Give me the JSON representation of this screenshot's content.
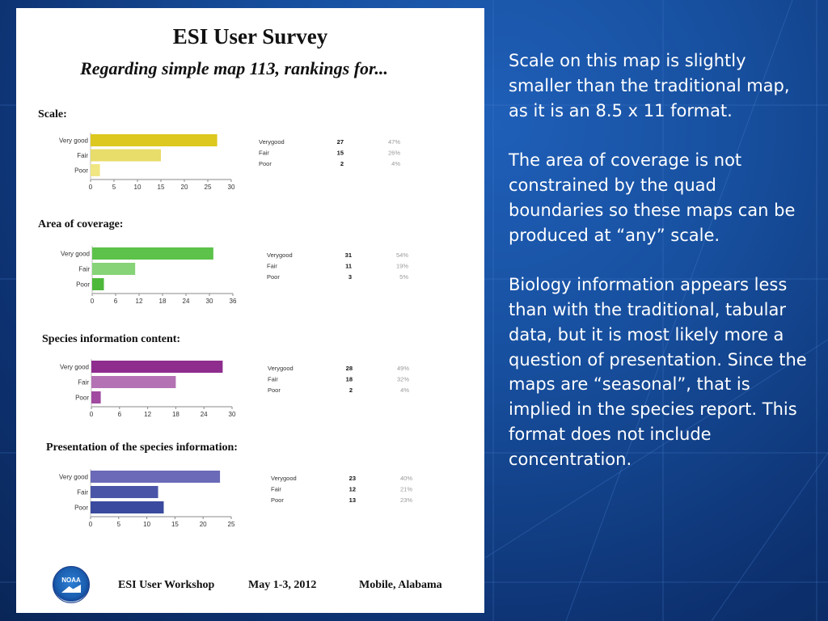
{
  "poster": {
    "title": "ESI User Survey",
    "subtitle": "Regarding simple map 113, rankings for...",
    "footer": {
      "logo_text": "NOAA",
      "event": "ESI User Workshop",
      "date": "May 1-3, 2012",
      "location": "Mobile, Alabama"
    }
  },
  "notes": {
    "paragraph_1": "Scale on this map is slightly smaller than the traditional map, as it is an 8.5 x 11 format.",
    "paragraph_2": "The area of coverage is not constrained by the quad boundaries so these maps can be produced at “any” scale.",
    "paragraph_3": "Biology information appears less than with the traditional, tabular data, but it is most likely more a question of presentation. Since the maps are “seasonal”, that is implied in the species report. This format does not include concentration."
  },
  "chart_data": [
    {
      "type": "bar",
      "orientation": "horizontal",
      "title": "Scale:",
      "categories": [
        "Very good",
        "Fair",
        "Poor"
      ],
      "values": [
        27,
        15,
        2
      ],
      "percents": [
        "47%",
        "26%",
        "4%"
      ],
      "xlim": [
        0,
        30
      ],
      "ticks": [
        0,
        5,
        10,
        15,
        20,
        25,
        30
      ],
      "colors": [
        "#dcc81e",
        "#e8dc6a",
        "#f0e682"
      ],
      "grid": false
    },
    {
      "type": "bar",
      "orientation": "horizontal",
      "title": "Area of coverage:",
      "categories": [
        "Very good",
        "Fair",
        "Poor"
      ],
      "values": [
        31,
        11,
        3
      ],
      "percents": [
        "54%",
        "19%",
        "5%"
      ],
      "xlim": [
        0,
        36
      ],
      "ticks": [
        0,
        6,
        12,
        18,
        24,
        30,
        36
      ],
      "colors": [
        "#5cc24a",
        "#86d378",
        "#4db83a"
      ],
      "grid": false
    },
    {
      "type": "bar",
      "orientation": "horizontal",
      "title": "Species information content:",
      "categories": [
        "Very good",
        "Fair",
        "Poor"
      ],
      "values": [
        28,
        18,
        2
      ],
      "percents": [
        "49%",
        "32%",
        "4%"
      ],
      "xlim": [
        0,
        30
      ],
      "ticks": [
        0,
        6,
        12,
        18,
        24,
        30
      ],
      "colors": [
        "#8e2d8e",
        "#b472b4",
        "#a04aa0"
      ],
      "grid": false
    },
    {
      "type": "bar",
      "orientation": "horizontal",
      "title": "Presentation of the species information:",
      "categories": [
        "Very good",
        "Fair",
        "Poor"
      ],
      "values": [
        23,
        12,
        13
      ],
      "percents": [
        "40%",
        "21%",
        "23%"
      ],
      "xlim": [
        0,
        25
      ],
      "ticks": [
        0,
        5,
        10,
        15,
        20,
        25
      ],
      "colors": [
        "#6a6ab8",
        "#4a55a8",
        "#3a4a9e"
      ],
      "grid": false
    }
  ]
}
